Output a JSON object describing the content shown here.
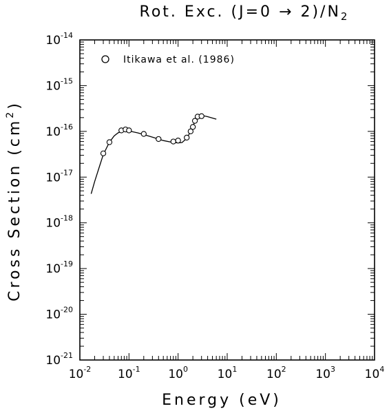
{
  "chart_data": {
    "type": "scatter",
    "title_main": "Rot. Exc. (J=0 → 2)/N",
    "title_sub": "2",
    "xlabel": "Energy (eV)",
    "ylabel_main": "Cross Section (cm",
    "ylabel_sup": "2",
    "ylabel_end": ")",
    "x_scale": "log",
    "y_scale": "log",
    "xlim": [
      0.01,
      10000
    ],
    "ylim": [
      1e-21,
      1e-14
    ],
    "x_ticks": [
      {
        "base": "10",
        "exp": "-2",
        "value": 0.01
      },
      {
        "base": "10",
        "exp": "-1",
        "value": 0.1
      },
      {
        "base": "10",
        "exp": "0",
        "value": 1
      },
      {
        "base": "10",
        "exp": "1",
        "value": 10
      },
      {
        "base": "10",
        "exp": "2",
        "value": 100
      },
      {
        "base": "10",
        "exp": "3",
        "value": 1000
      },
      {
        "base": "10",
        "exp": "4",
        "value": 10000
      }
    ],
    "y_ticks": [
      {
        "base": "10",
        "exp": "-14",
        "value": 1e-14
      },
      {
        "base": "10",
        "exp": "-15",
        "value": 1e-15
      },
      {
        "base": "10",
        "exp": "-16",
        "value": 1e-16
      },
      {
        "base": "10",
        "exp": "-17",
        "value": 1e-17
      },
      {
        "base": "10",
        "exp": "-18",
        "value": 1e-18
      },
      {
        "base": "10",
        "exp": "-19",
        "value": 1e-19
      },
      {
        "base": "10",
        "exp": "-20",
        "value": 1e-20
      },
      {
        "base": "10",
        "exp": "-21",
        "value": 1e-21
      }
    ],
    "legend_position": "top-left",
    "series": [
      {
        "name": "Itikawa et al. (1986)",
        "marker": "open-circle",
        "x": [
          0.03,
          0.04,
          0.07,
          0.085,
          0.1,
          0.2,
          0.4,
          0.8,
          1.0,
          1.5,
          1.8,
          2.0,
          2.2,
          2.5,
          3.0
        ],
        "y": [
          3.3e-17,
          5.8e-17,
          1.05e-16,
          1.1e-16,
          1.05e-16,
          8.8e-17,
          6.8e-17,
          6e-17,
          6.3e-17,
          7.3e-17,
          1e-16,
          1.25e-16,
          1.7e-16,
          2.1e-16,
          2.15e-16
        ]
      },
      {
        "marker": "line",
        "x": [
          0.017,
          0.02,
          0.025,
          0.03,
          0.04,
          0.05,
          0.06,
          0.07,
          0.08,
          0.1,
          0.15,
          0.2,
          0.3,
          0.5,
          0.8,
          1.0,
          1.2,
          1.5,
          1.8,
          2.0,
          2.3,
          2.6,
          3.0,
          4.0,
          6.0
        ],
        "y": [
          4.3e-18,
          8e-18,
          1.7e-17,
          3.1e-17,
          5.8e-17,
          8e-17,
          9.3e-17,
          1e-16,
          1.03e-16,
          1.02e-16,
          9.3e-17,
          8.5e-17,
          7.5e-17,
          6.3e-17,
          5.7e-17,
          5.6e-17,
          5.7e-17,
          7e-17,
          1e-16,
          1.3e-16,
          1.8e-16,
          2.1e-16,
          2.25e-16,
          2.1e-16,
          1.85e-16
        ]
      }
    ]
  }
}
